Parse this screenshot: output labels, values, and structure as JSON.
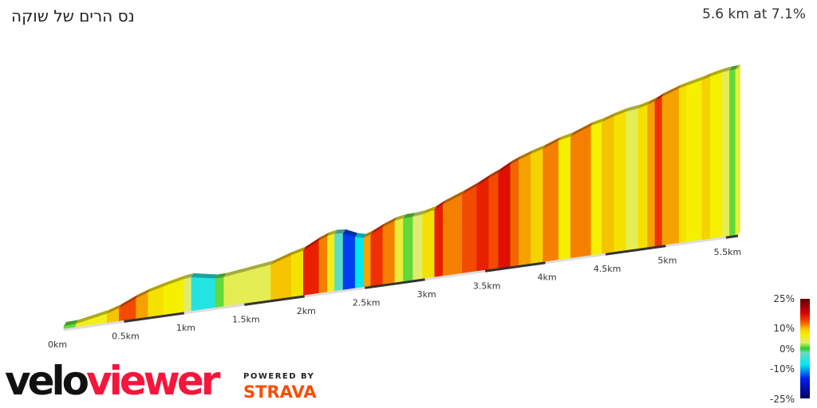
{
  "header": {
    "title": "נס הרים של שוקה",
    "summary": "5.6 km at 7.1%"
  },
  "chart_data": {
    "type": "area",
    "title": "נס הרים של שוקה",
    "subtitle": "5.6 km at 7.1%",
    "xlabel": "",
    "ylabel": "",
    "xlim": [
      0,
      5.6
    ],
    "x_ticks": [
      "0km",
      "0.5km",
      "1km",
      "1.5km",
      "2km",
      "2.5km",
      "3km",
      "3.5km",
      "4km",
      "4.5km",
      "5km",
      "5.5km"
    ],
    "x_tick_values": [
      0,
      0.5,
      1,
      1.5,
      2,
      2.5,
      3,
      3.5,
      4,
      4.5,
      5,
      5.5
    ],
    "segments_km_gradient_pct": [
      [
        0.0,
        0.1,
        1
      ],
      [
        0.1,
        0.36,
        6
      ],
      [
        0.36,
        0.46,
        10
      ],
      [
        0.46,
        0.6,
        14
      ],
      [
        0.6,
        0.7,
        11
      ],
      [
        0.7,
        0.83,
        8
      ],
      [
        0.83,
        1.0,
        7
      ],
      [
        1.0,
        1.06,
        3
      ],
      [
        1.06,
        1.26,
        -6
      ],
      [
        1.26,
        1.33,
        1
      ],
      [
        1.33,
        1.72,
        4
      ],
      [
        1.72,
        1.89,
        10
      ],
      [
        1.89,
        1.99,
        8
      ],
      [
        1.99,
        2.12,
        16
      ],
      [
        2.12,
        2.19,
        12
      ],
      [
        2.19,
        2.25,
        6
      ],
      [
        2.25,
        2.32,
        -3
      ],
      [
        2.32,
        2.42,
        -14
      ],
      [
        2.42,
        2.49,
        -8
      ],
      [
        2.49,
        2.55,
        11
      ],
      [
        2.55,
        2.65,
        15
      ],
      [
        2.65,
        2.75,
        12
      ],
      [
        2.75,
        2.82,
        5
      ],
      [
        2.82,
        2.9,
        1
      ],
      [
        2.9,
        2.98,
        3
      ],
      [
        2.98,
        3.08,
        8
      ],
      [
        3.08,
        3.15,
        16
      ],
      [
        3.15,
        3.31,
        12
      ],
      [
        3.31,
        3.43,
        14
      ],
      [
        3.43,
        3.53,
        16
      ],
      [
        3.53,
        3.61,
        14
      ],
      [
        3.61,
        3.71,
        17
      ],
      [
        3.71,
        3.78,
        13
      ],
      [
        3.78,
        3.88,
        11
      ],
      [
        3.88,
        3.98,
        9
      ],
      [
        3.98,
        4.11,
        12
      ],
      [
        4.11,
        4.21,
        7
      ],
      [
        4.21,
        4.38,
        12
      ],
      [
        4.38,
        4.47,
        7
      ],
      [
        4.47,
        4.57,
        10
      ],
      [
        4.57,
        4.67,
        8
      ],
      [
        4.67,
        4.77,
        4
      ],
      [
        4.77,
        4.85,
        8
      ],
      [
        4.85,
        4.91,
        11
      ],
      [
        4.91,
        4.97,
        15
      ],
      [
        4.97,
        5.11,
        11
      ],
      [
        5.11,
        5.17,
        8
      ],
      [
        5.17,
        5.3,
        7
      ],
      [
        5.3,
        5.37,
        9
      ],
      [
        5.37,
        5.47,
        7
      ],
      [
        5.47,
        5.53,
        4
      ],
      [
        5.53,
        5.58,
        1
      ],
      [
        5.58,
        5.6,
        5
      ]
    ],
    "color_scale": {
      "labels": [
        "25%",
        "10%",
        "0%",
        "-10%",
        "-25%"
      ],
      "stops": [
        [
          -25,
          "#000060"
        ],
        [
          -15,
          "#0020f0"
        ],
        [
          -8,
          "#00e8f0"
        ],
        [
          -2,
          "#70d8c0"
        ],
        [
          0,
          "#20d020"
        ],
        [
          3,
          "#e0ec70"
        ],
        [
          7,
          "#f5f000"
        ],
        [
          10,
          "#f5c400"
        ],
        [
          12,
          "#f58000"
        ],
        [
          15,
          "#f03000"
        ],
        [
          18,
          "#d80000"
        ],
        [
          25,
          "#600000"
        ]
      ]
    },
    "grid": false,
    "legend": "right"
  },
  "branding": {
    "logo_part1": "velo",
    "logo_part2": "viewer",
    "powered_by": "POWERED BY",
    "strava": "STRAVA",
    "logo_red": "#f5163c",
    "strava_orange": "#fc4c02"
  }
}
